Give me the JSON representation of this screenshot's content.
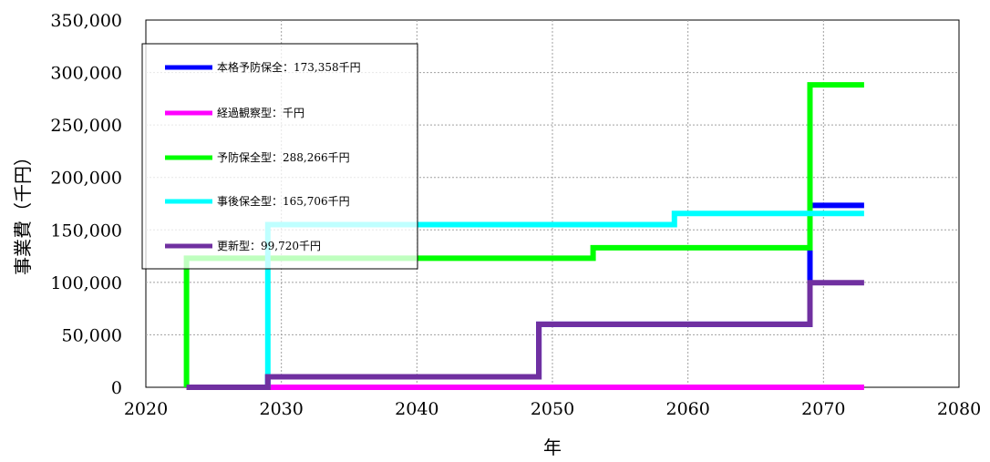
{
  "chart_data": {
    "type": "line",
    "step": true,
    "xlabel": "年",
    "ylabel": "事業費（千円）",
    "xlim": [
      2020,
      2080
    ],
    "ylim": [
      0,
      350000
    ],
    "xticks": [
      2020,
      2030,
      2040,
      2050,
      2060,
      2070,
      2080
    ],
    "yticks": [
      0,
      50000,
      100000,
      150000,
      200000,
      250000,
      300000,
      350000
    ],
    "xtick_labels": [
      "2020",
      "2030",
      "2040",
      "2050",
      "2060",
      "2070",
      "2080"
    ],
    "ytick_labels": [
      "0",
      "50,000",
      "100,000",
      "150,000",
      "200,000",
      "250,000",
      "300,000",
      "350,000"
    ],
    "grid": true,
    "legend_position": "top-left",
    "series": [
      {
        "name": "本格予防保全：173,358千円",
        "color": "#0000ff",
        "x": [
          2023,
          2029,
          2029,
          2049,
          2049,
          2069,
          2069,
          2073
        ],
        "y": [
          0,
          0,
          10000,
          10000,
          60000,
          60000,
          173358,
          173358
        ]
      },
      {
        "name": "経過観察型：千円",
        "color": "#ff00ff",
        "x": [
          2023,
          2073
        ],
        "y": [
          0,
          0
        ]
      },
      {
        "name": "予防保全型：288,266千円",
        "color": "#00ff00",
        "x": [
          2023,
          2023,
          2053,
          2053,
          2069,
          2069,
          2073
        ],
        "y": [
          0,
          123000,
          123000,
          133000,
          133000,
          288266,
          288266
        ]
      },
      {
        "name": "事後保全型：165,706千円",
        "color": "#00ffff",
        "x": [
          2029,
          2029,
          2059,
          2059,
          2073
        ],
        "y": [
          0,
          155000,
          155000,
          165706,
          165706
        ]
      },
      {
        "name": "更新型：99,720千円",
        "color": "#7030a0",
        "x": [
          2023,
          2029,
          2029,
          2049,
          2049,
          2069,
          2069,
          2073
        ],
        "y": [
          0,
          0,
          10000,
          10000,
          60000,
          60000,
          99720,
          99720
        ]
      }
    ]
  }
}
